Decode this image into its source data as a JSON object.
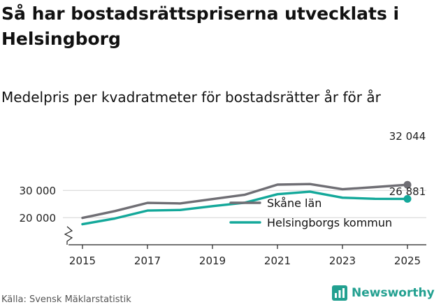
{
  "title": "Så har bostadsrättspriserna utvecklats i Helsingborg",
  "subtitle": "Medelpris per kvadratmeter för bostadsrätter år för år",
  "source": "Källa: Svensk Mäklarstatistik",
  "brand": "Newsworthy",
  "colors": {
    "skane": "#6f6e74",
    "helsingborg": "#13a89a",
    "grid": "#d4d4d4",
    "axis": "#222222",
    "brand": "#22a090"
  },
  "chart_data": {
    "type": "line",
    "title": "Så har bostadsrättspriserna utvecklats i Helsingborg",
    "subtitle": "Medelpris per kvadratmeter för bostadsrätter år för år",
    "x": [
      2015,
      2016,
      2017,
      2018,
      2019,
      2020,
      2021,
      2022,
      2023,
      2024,
      2025
    ],
    "xticks": [
      "2015",
      "2017",
      "2019",
      "2021",
      "2023",
      "2025"
    ],
    "yticks": [
      "20 000",
      "30 000"
    ],
    "ylim": [
      16000,
      35000
    ],
    "series": [
      {
        "name": "Skåne län",
        "values": [
          19900,
          22400,
          25400,
          25200,
          26800,
          28400,
          32100,
          32300,
          30400,
          31200,
          32044
        ],
        "end_label": "32 044"
      },
      {
        "name": "Helsingborgs kommun",
        "values": [
          17600,
          19700,
          22600,
          22800,
          24200,
          25500,
          28600,
          29500,
          27300,
          26900,
          26881
        ],
        "end_label": "26 881"
      }
    ],
    "legend": "inside-bottom-right"
  }
}
